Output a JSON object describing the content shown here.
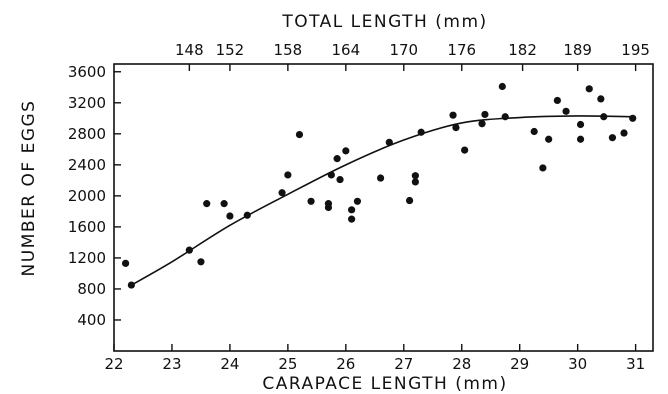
{
  "chart_data": {
    "type": "scatter",
    "title": "",
    "xlabel": "CARAPACE LENGTH (mm)",
    "ylabel": "NUMBER OF EGGS",
    "x2label": "TOTAL LENGTH (mm)",
    "xlim": [
      22,
      31.3
    ],
    "ylim": [
      0,
      3700
    ],
    "x_ticks": [
      22,
      23,
      24,
      25,
      26,
      27,
      28,
      29,
      30,
      31
    ],
    "y_ticks": [
      400,
      800,
      1200,
      1600,
      2000,
      2400,
      2800,
      3200,
      3600
    ],
    "y_tick_labels": [
      "400",
      "800",
      "1200",
      "1600",
      "2000",
      "2400",
      "2800",
      "3200",
      "3600"
    ],
    "top_ticks": [
      {
        "label": "148",
        "x": 23.3
      },
      {
        "label": "152",
        "x": 24.0
      },
      {
        "label": "158",
        "x": 25.0
      },
      {
        "label": "164",
        "x": 26.0
      },
      {
        "label": "170",
        "x": 27.0
      },
      {
        "label": "176",
        "x": 28.0
      },
      {
        "label": "182",
        "x": 29.05
      },
      {
        "label": "189",
        "x": 30.0
      },
      {
        "label": "195",
        "x": 31.0
      }
    ],
    "grid": false,
    "legend": "none",
    "series": [
      {
        "type": "scatter",
        "points": [
          [
            22.2,
            1130
          ],
          [
            22.3,
            850
          ],
          [
            23.3,
            1300
          ],
          [
            23.5,
            1150
          ],
          [
            23.6,
            1900
          ],
          [
            23.9,
            1900
          ],
          [
            24.0,
            1740
          ],
          [
            24.3,
            1750
          ],
          [
            24.9,
            2040
          ],
          [
            25.0,
            2270
          ],
          [
            25.2,
            2790
          ],
          [
            25.4,
            1930
          ],
          [
            25.7,
            1850
          ],
          [
            25.7,
            1900
          ],
          [
            25.75,
            2270
          ],
          [
            25.85,
            2480
          ],
          [
            25.9,
            2210
          ],
          [
            26.0,
            2580
          ],
          [
            26.1,
            1700
          ],
          [
            26.1,
            1820
          ],
          [
            26.2,
            1930
          ],
          [
            26.6,
            2230
          ],
          [
            26.75,
            2690
          ],
          [
            27.1,
            1940
          ],
          [
            27.2,
            2180
          ],
          [
            27.2,
            2260
          ],
          [
            27.3,
            2820
          ],
          [
            27.85,
            3040
          ],
          [
            27.9,
            2880
          ],
          [
            28.05,
            2590
          ],
          [
            28.35,
            2930
          ],
          [
            28.4,
            3050
          ],
          [
            28.7,
            3410
          ],
          [
            28.75,
            3020
          ],
          [
            29.25,
            2830
          ],
          [
            29.4,
            2360
          ],
          [
            29.5,
            2730
          ],
          [
            29.65,
            3230
          ],
          [
            29.8,
            3090
          ],
          [
            30.05,
            2730
          ],
          [
            30.05,
            2920
          ],
          [
            30.2,
            3380
          ],
          [
            30.4,
            3250
          ],
          [
            30.45,
            3020
          ],
          [
            30.6,
            2750
          ],
          [
            30.8,
            2810
          ],
          [
            30.95,
            3000
          ]
        ]
      },
      {
        "type": "line",
        "points": [
          [
            22.3,
            850
          ],
          [
            23.0,
            1150
          ],
          [
            24.0,
            1620
          ],
          [
            25.0,
            2020
          ],
          [
            26.0,
            2400
          ],
          [
            27.0,
            2720
          ],
          [
            28.0,
            2940
          ],
          [
            29.0,
            3010
          ],
          [
            30.0,
            3030
          ],
          [
            31.0,
            3020
          ]
        ]
      }
    ]
  }
}
